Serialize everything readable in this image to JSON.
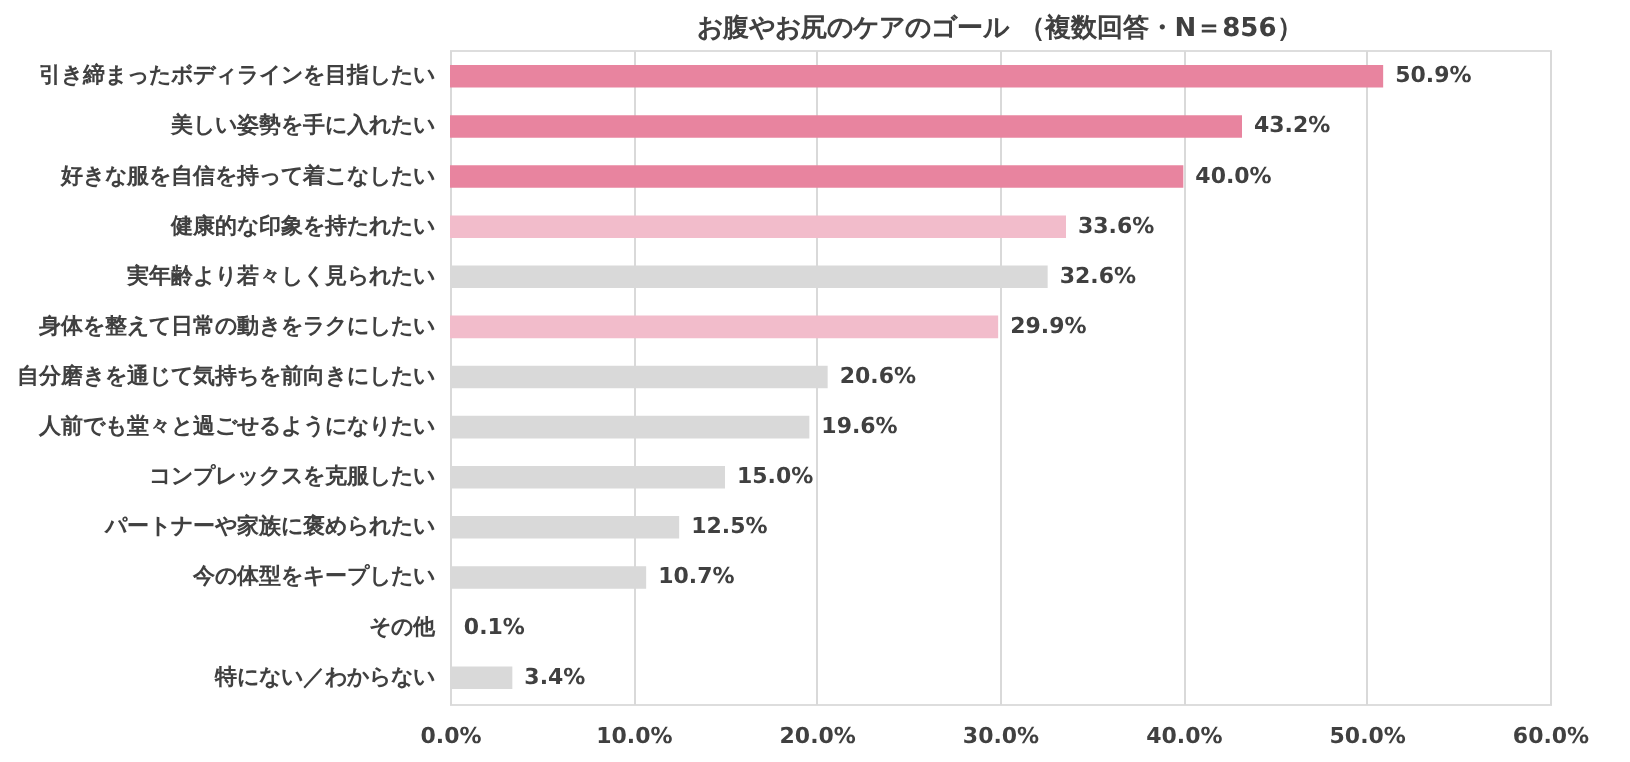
{
  "chart_data": {
    "type": "bar",
    "orientation": "horizontal",
    "title": "お腹やお尻のケアのゴール （複数回答・N＝856）",
    "categories": [
      "引き締まったボディラインを目指したい",
      "美しい姿勢を手に入れたい",
      "好きな服を自信を持って着こなしたい",
      "健康的な印象を持たれたい",
      "実年齢より若々しく見られたい",
      "身体を整えて日常の動きをラクにしたい",
      "自分磨きを通じて気持ちを前向きにしたい",
      "人前でも堂々と過ごせるようになりたい",
      "コンプレックスを克服したい",
      "パートナーや家族に褒められたい",
      "今の体型をキープしたい",
      "その他",
      "特にない／わからない"
    ],
    "values": [
      50.9,
      43.2,
      40.0,
      33.6,
      32.6,
      29.9,
      20.6,
      19.6,
      15.0,
      12.5,
      10.7,
      0.1,
      3.4
    ],
    "value_labels": [
      "50.9%",
      "43.2%",
      "40.0%",
      "33.6%",
      "32.6%",
      "29.9%",
      "20.6%",
      "19.6%",
      "15.0%",
      "12.5%",
      "10.7%",
      "0.1%",
      "3.4%"
    ],
    "colors": [
      "#e8849f",
      "#e8849f",
      "#e8849f",
      "#f2bccb",
      "#d9d9d9",
      "#f2bccb",
      "#d9d9d9",
      "#d9d9d9",
      "#d9d9d9",
      "#d9d9d9",
      "#d9d9d9",
      "#d9d9d9",
      "#d9d9d9"
    ],
    "xlim": [
      0,
      60
    ],
    "xticks": [
      {
        "value": 0,
        "label": "0.0%"
      },
      {
        "value": 10,
        "label": "10.0%"
      },
      {
        "value": 20,
        "label": "20.0%"
      },
      {
        "value": 30,
        "label": "30.0%"
      },
      {
        "value": 40,
        "label": "40.0%"
      },
      {
        "value": 50,
        "label": "50.0%"
      },
      {
        "value": 60,
        "label": "60.0%"
      }
    ],
    "grid": "x"
  }
}
